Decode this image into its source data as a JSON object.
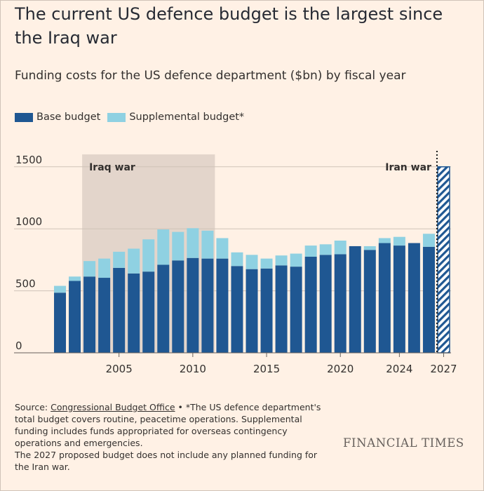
{
  "header": {
    "title": "The current US defence budget is the largest since the Iraq war",
    "subtitle": "Funding costs for the US defence department ($bn) by fiscal year"
  },
  "colors": {
    "background": "#fff1e5",
    "base": "#1f5792",
    "supplemental": "#8fd1e2",
    "shade": "#e3d5cb",
    "grid": "#cfc3b8"
  },
  "chart_data": {
    "type": "bar",
    "stacked": true,
    "x": [
      2001,
      2002,
      2003,
      2004,
      2005,
      2006,
      2007,
      2008,
      2009,
      2010,
      2011,
      2012,
      2013,
      2014,
      2015,
      2016,
      2017,
      2018,
      2019,
      2020,
      2021,
      2022,
      2023,
      2024,
      2025,
      2026,
      2027
    ],
    "series": [
      {
        "name": "Base budget",
        "color": "#1f5792",
        "values": [
          485,
          580,
          615,
          605,
          685,
          640,
          655,
          710,
          745,
          765,
          760,
          760,
          700,
          675,
          680,
          705,
          695,
          775,
          790,
          795,
          860,
          830,
          885,
          865,
          885,
          855,
          1500
        ]
      },
      {
        "name": "Supplemental budget*",
        "color": "#8fd1e2",
        "values": [
          55,
          35,
          125,
          155,
          130,
          200,
          260,
          285,
          230,
          240,
          225,
          165,
          110,
          115,
          80,
          80,
          105,
          90,
          85,
          110,
          0,
          30,
          40,
          70,
          0,
          105,
          0
        ]
      }
    ],
    "hatched_years": [
      2027
    ],
    "xticks": [
      "2005",
      "2010",
      "2015",
      "2020",
      "2024",
      "2027"
    ],
    "yticks": [
      "0",
      "500",
      "1000",
      "1500"
    ],
    "ylim": [
      0,
      1600
    ],
    "grid": true,
    "legend_position": "top-left",
    "annotations": [
      {
        "label": "Iraq war",
        "type": "shaded-range",
        "from": 2003,
        "to": 2011
      },
      {
        "label": "Iran war",
        "type": "dotted-line",
        "at": 2026
      }
    ]
  },
  "source": {
    "prefix": "Source: ",
    "link": "Congressional Budget Office",
    "bullet": " • ",
    "note_lines": [
      "*The US defence department's",
      "total budget covers routine, peacetime operations. Supplemental",
      "funding includes funds appropriated for overseas contingency",
      "operations and emergencies.",
      "The 2027 proposed budget does not include any planned funding for",
      "the Iran war."
    ]
  },
  "brand": "FINANCIAL TIMES"
}
